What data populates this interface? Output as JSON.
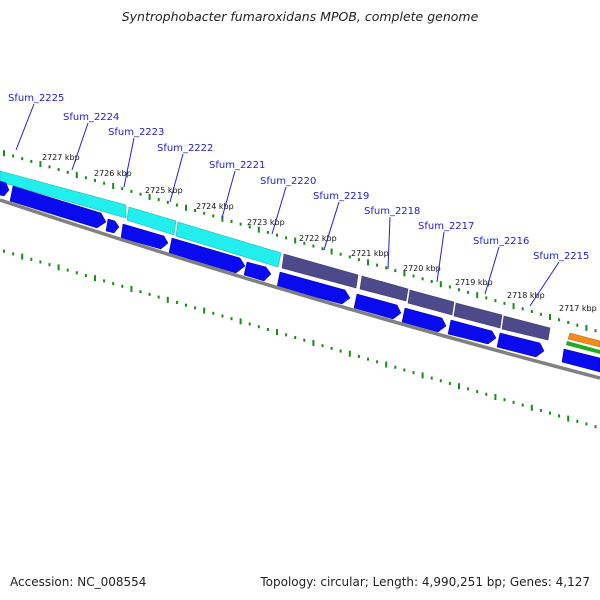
{
  "title": "Syntrophobacter fumaroxidans MPOB, complete genome",
  "footer": {
    "accession": "Accession: NC_008554",
    "summary": "Topology: circular; Length: 4,990,251 bp; Genes: 4,127"
  },
  "colors": {
    "backbone": "#808080",
    "cds": "#0a0aee",
    "cds_highlight_cyan": "#22eeee",
    "cds_highlight_purple": "#4d4a8c",
    "gc_skew_green": "#22aa22",
    "feature_orange": "#f08c1e",
    "label_blue": "#2222cc"
  },
  "map": {
    "coordinates_kbp": [
      2727,
      2726,
      2725,
      2724,
      2723,
      2722,
      2721,
      2720,
      2719,
      2718,
      2717
    ],
    "ticks": [
      {
        "label": "2727 kbp",
        "kbp": 2727
      },
      {
        "label": "2726 kbp",
        "kbp": 2726
      },
      {
        "label": "2725 kbp",
        "kbp": 2725
      },
      {
        "label": "2724 kbp",
        "kbp": 2724
      },
      {
        "label": "2723 kbp",
        "kbp": 2723
      },
      {
        "label": "2722 kbp",
        "kbp": 2722
      },
      {
        "label": "2721 kbp",
        "kbp": 2721
      },
      {
        "label": "2720 kbp",
        "kbp": 2720
      },
      {
        "label": "2719 kbp",
        "kbp": 2719
      },
      {
        "label": "2718 kbp",
        "kbp": 2718
      },
      {
        "label": "2717 kbp",
        "kbp": 2717
      }
    ],
    "genes": [
      {
        "label": "Sfum_2225",
        "track": "cyan"
      },
      {
        "label": "Sfum_2224",
        "track": "cyan"
      },
      {
        "label": "Sfum_2223",
        "track": "cyan"
      },
      {
        "label": "Sfum_2222",
        "track": "cyan"
      },
      {
        "label": "Sfum_2221",
        "track": "cyan"
      },
      {
        "label": "Sfum_2220",
        "track": "purple"
      },
      {
        "label": "Sfum_2219",
        "track": "purple"
      },
      {
        "label": "Sfum_2218",
        "track": "purple"
      },
      {
        "label": "Sfum_2217",
        "track": "purple"
      },
      {
        "label": "Sfum_2216",
        "track": "purple"
      },
      {
        "label": "Sfum_2215",
        "track": "purple"
      }
    ]
  }
}
